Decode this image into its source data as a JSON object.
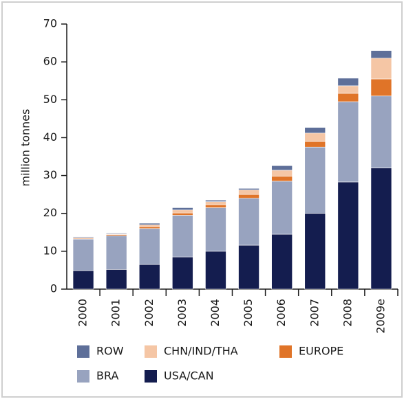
{
  "chart_data": {
    "type": "stacked_bar",
    "y_label": "million tonnes",
    "categories": [
      "2000",
      "2001",
      "2002",
      "2003",
      "2004",
      "2005",
      "2006",
      "2007",
      "2008",
      "2009e"
    ],
    "series": [
      {
        "name": "USA/CAN",
        "color": "#141d4f",
        "values": [
          4.9,
          5.2,
          6.5,
          8.5,
          10.0,
          11.6,
          14.5,
          20.0,
          28.3,
          32.0
        ]
      },
      {
        "name": "BRA",
        "color": "#98a3bf",
        "values": [
          8.3,
          8.9,
          9.5,
          11.0,
          11.5,
          12.4,
          14.0,
          17.5,
          21.2,
          19.0
        ]
      },
      {
        "name": "EUROPE",
        "color": "#e07428",
        "values": [
          0.2,
          0.3,
          0.5,
          0.6,
          0.8,
          1.0,
          1.3,
          1.5,
          2.2,
          4.5
        ]
      },
      {
        "name": "CHN/IND/THA",
        "color": "#f5c6a5",
        "values": [
          0.2,
          0.2,
          0.5,
          0.8,
          0.8,
          1.2,
          1.6,
          2.2,
          2.0,
          5.5
        ]
      },
      {
        "name": "ROW",
        "color": "#5e6f99",
        "values": [
          0.2,
          0.2,
          0.4,
          0.6,
          0.4,
          0.4,
          1.2,
          1.5,
          2.0,
          2.0
        ]
      }
    ],
    "ylim": [
      0,
      70
    ],
    "yticks": [
      0,
      10,
      20,
      30,
      40,
      50,
      60,
      70
    ]
  }
}
